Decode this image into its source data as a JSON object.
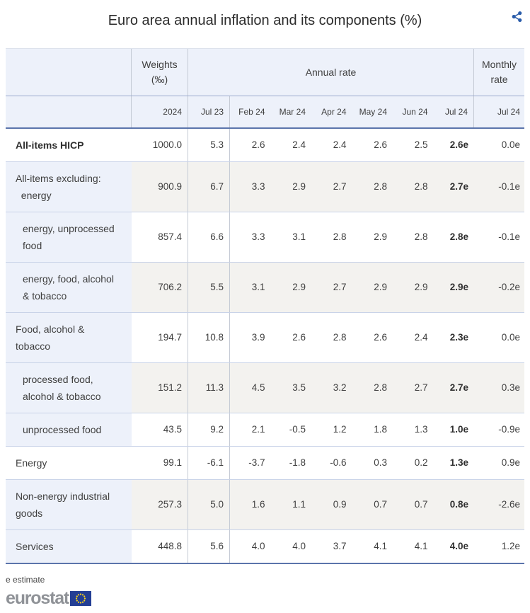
{
  "title": "Euro area annual inflation and its components (%)",
  "icons": {
    "share": "share-icon",
    "eu_flag": "eu-flag-icon"
  },
  "colors": {
    "header_background": "#edf1fa",
    "stripe_background": "#f3f2ef",
    "strong_rule": "#5b74ab",
    "light_rule": "#c9d3e8",
    "accent_blue": "#2a5caa",
    "flag_blue": "#233e94",
    "star_yellow": "#ffd617",
    "logo_gray": "#8f9297"
  },
  "chart_data": {
    "type": "table",
    "title": "Euro area annual inflation and its components (%)",
    "header": {
      "weights": "Weights\n(‰)",
      "annual": "Annual rate",
      "monthly": "Monthly\nrate",
      "year": "2024",
      "months_annual": [
        "Jul 23",
        "Feb 24",
        "Mar 24",
        "Apr 24",
        "May 24",
        "Jun 24",
        "Jul 24"
      ],
      "month_monthly": "Jul 24"
    },
    "rows": [
      {
        "label": "All-items HICP",
        "bold": true,
        "indent": false,
        "label_tint": false,
        "stripe": false,
        "weight": "1000.0",
        "annual": [
          "5.3",
          "2.6",
          "2.4",
          "2.4",
          "2.6",
          "2.5",
          "2.6e"
        ],
        "monthly": "0.0e"
      },
      {
        "label": "All-items excluding:\n  energy",
        "bold": false,
        "indent": false,
        "label_tint": true,
        "stripe": true,
        "weight": "900.9",
        "annual": [
          "6.7",
          "3.3",
          "2.9",
          "2.7",
          "2.8",
          "2.8",
          "2.7e"
        ],
        "monthly": "-0.1e"
      },
      {
        "label": "energy, unprocessed\nfood",
        "bold": false,
        "indent": true,
        "label_tint": true,
        "stripe": false,
        "weight": "857.4",
        "annual": [
          "6.6",
          "3.3",
          "3.1",
          "2.8",
          "2.9",
          "2.8",
          "2.8e"
        ],
        "monthly": "-0.1e"
      },
      {
        "label": "energy, food, alcohol\n& tobacco",
        "bold": false,
        "indent": true,
        "label_tint": true,
        "stripe": true,
        "weight": "706.2",
        "annual": [
          "5.5",
          "3.1",
          "2.9",
          "2.7",
          "2.9",
          "2.9",
          "2.9e"
        ],
        "monthly": "-0.2e"
      },
      {
        "label": "Food, alcohol &\ntobacco",
        "bold": false,
        "indent": false,
        "label_tint": true,
        "stripe": false,
        "weight": "194.7",
        "annual": [
          "10.8",
          "3.9",
          "2.6",
          "2.8",
          "2.6",
          "2.4",
          "2.3e"
        ],
        "monthly": "0.0e"
      },
      {
        "label": "processed food,\nalcohol & tobacco",
        "bold": false,
        "indent": true,
        "label_tint": true,
        "stripe": true,
        "weight": "151.2",
        "annual": [
          "11.3",
          "4.5",
          "3.5",
          "3.2",
          "2.8",
          "2.7",
          "2.7e"
        ],
        "monthly": "0.3e"
      },
      {
        "label": "unprocessed food",
        "bold": false,
        "indent": true,
        "label_tint": true,
        "stripe": false,
        "weight": "43.5",
        "annual": [
          "9.2",
          "2.1",
          "-0.5",
          "1.2",
          "1.8",
          "1.3",
          "1.0e"
        ],
        "monthly": "-0.9e"
      },
      {
        "label": "Energy",
        "bold": false,
        "indent": false,
        "label_tint": false,
        "stripe": false,
        "weight": "99.1",
        "annual": [
          "-6.1",
          "-3.7",
          "-1.8",
          "-0.6",
          "0.3",
          "0.2",
          "1.3e"
        ],
        "monthly": "0.9e"
      },
      {
        "label": "Non-energy industrial\ngoods",
        "bold": false,
        "indent": false,
        "label_tint": true,
        "stripe": true,
        "weight": "257.3",
        "annual": [
          "5.0",
          "1.6",
          "1.1",
          "0.9",
          "0.7",
          "0.7",
          "0.8e"
        ],
        "monthly": "-2.6e"
      },
      {
        "label": "Services",
        "bold": false,
        "indent": false,
        "label_tint": true,
        "stripe": false,
        "weight": "448.8",
        "annual": [
          "5.6",
          "4.0",
          "4.0",
          "3.7",
          "4.1",
          "4.1",
          "4.0e"
        ],
        "monthly": "1.2e"
      }
    ]
  },
  "footnote": "e estimate",
  "logo": {
    "text": "eurostat"
  }
}
